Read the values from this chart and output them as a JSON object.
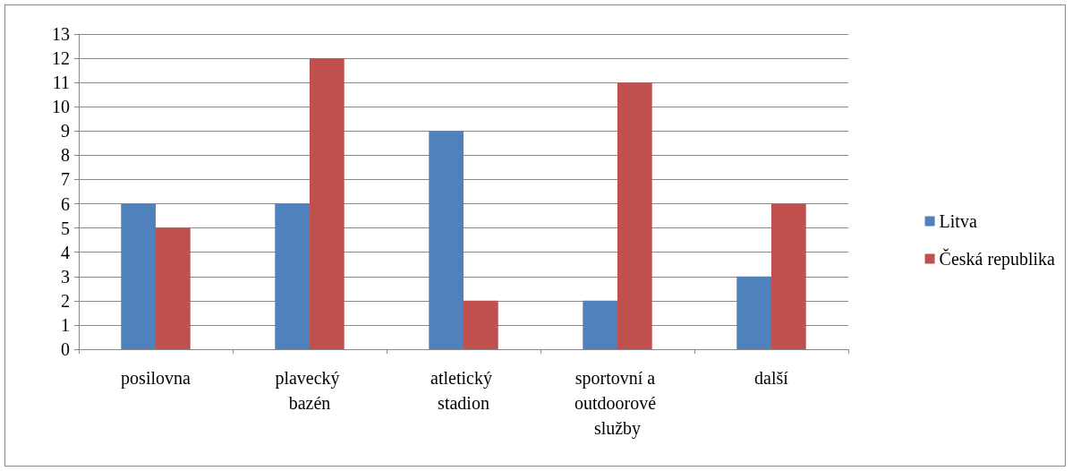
{
  "chart_data": {
    "type": "bar",
    "categories": [
      "posilovna",
      "plavecký bazén",
      "atletický stadion",
      "sportovní a outdoorové služby",
      "další"
    ],
    "series": [
      {
        "name": "Litva",
        "color": "#4f81bd",
        "values": [
          6,
          6,
          9,
          2,
          3
        ]
      },
      {
        "name": "Česká republika",
        "color": "#c0504d",
        "values": [
          5,
          12,
          2,
          11,
          6
        ]
      }
    ],
    "ylim": [
      0,
      13
    ],
    "yticks": [
      0,
      1,
      2,
      3,
      4,
      5,
      6,
      7,
      8,
      9,
      10,
      11,
      12,
      13
    ],
    "grid": "y",
    "legend": "right"
  }
}
